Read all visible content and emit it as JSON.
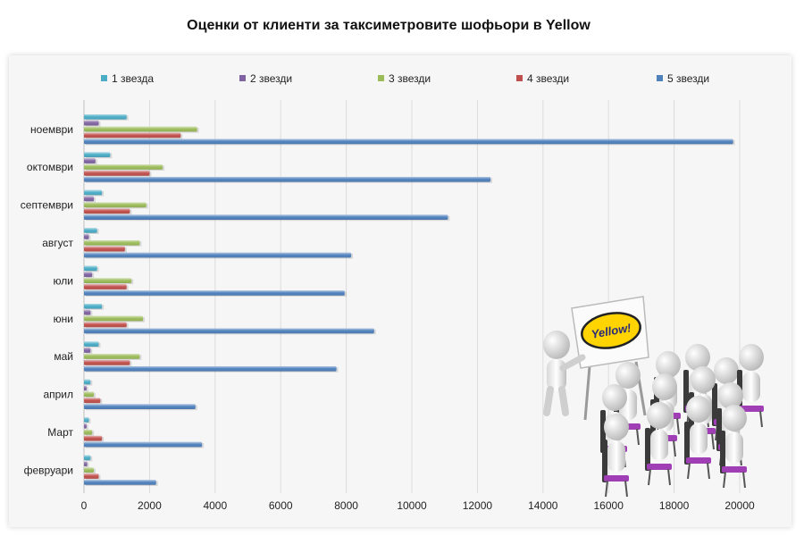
{
  "chart_data": {
    "type": "bar",
    "orientation": "horizontal",
    "title": "Оценки от клиенти за таксиметровите шофьори в Yellow",
    "xlabel": "",
    "ylabel": "",
    "categories": [
      "февруари",
      "Март",
      "април",
      "май",
      "юни",
      "юли",
      "август",
      "септември",
      "октомври",
      "ноември"
    ],
    "series": [
      {
        "name": "1 звезда",
        "color": "#4bacc6",
        "values": [
          200,
          150,
          200,
          450,
          550,
          400,
          400,
          550,
          800,
          1300
        ]
      },
      {
        "name": "2 звезди",
        "color": "#8064a2",
        "values": [
          100,
          80,
          80,
          200,
          200,
          250,
          150,
          300,
          350,
          450
        ]
      },
      {
        "name": "3 звезди",
        "color": "#9bbb59",
        "values": [
          300,
          250,
          300,
          1700,
          1800,
          1450,
          1700,
          1900,
          2400,
          3450
        ]
      },
      {
        "name": "4 звезди",
        "color": "#c0504d",
        "values": [
          450,
          550,
          500,
          1400,
          1300,
          1300,
          1250,
          1400,
          2000,
          2950
        ]
      },
      {
        "name": "5 звезди",
        "color": "#4f81bd",
        "values": [
          2200,
          3600,
          3400,
          7700,
          8850,
          7950,
          8150,
          11100,
          12400,
          19800
        ]
      }
    ],
    "xlim": [
      0,
      20000
    ],
    "xticks": [
      0,
      2000,
      4000,
      6000,
      8000,
      10000,
      12000,
      14000,
      16000,
      18000,
      20000
    ],
    "grid": true,
    "legend_position": "top"
  },
  "illustration": {
    "sign_text": "Yellow!"
  }
}
